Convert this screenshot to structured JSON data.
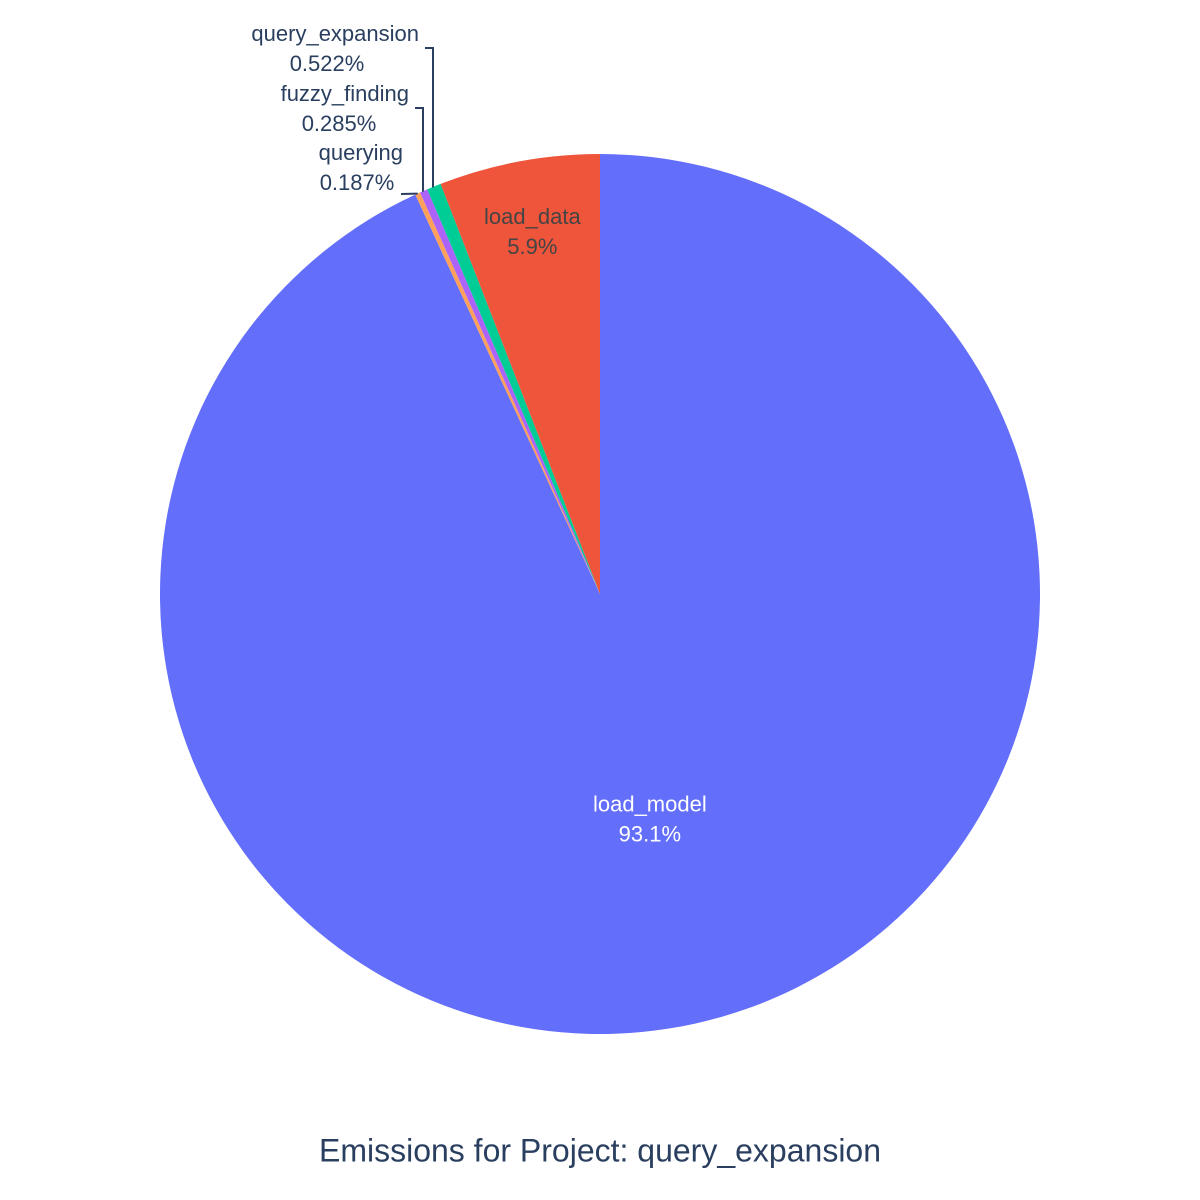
{
  "chart_data": {
    "type": "pie",
    "title": "Emissions for Project: query_expansion",
    "categories": [
      "load_model",
      "querying",
      "fuzzy_finding",
      "query_expansion",
      "load_data"
    ],
    "values": [
      93.1,
      0.187,
      0.285,
      0.522,
      5.9
    ],
    "value_labels": [
      "93.1%",
      "0.187%",
      "0.285%",
      "0.522%",
      "5.9%"
    ],
    "colors": [
      "#636efa",
      "#ffa15a",
      "#ab63fa",
      "#00cc96",
      "#ef553b"
    ]
  }
}
